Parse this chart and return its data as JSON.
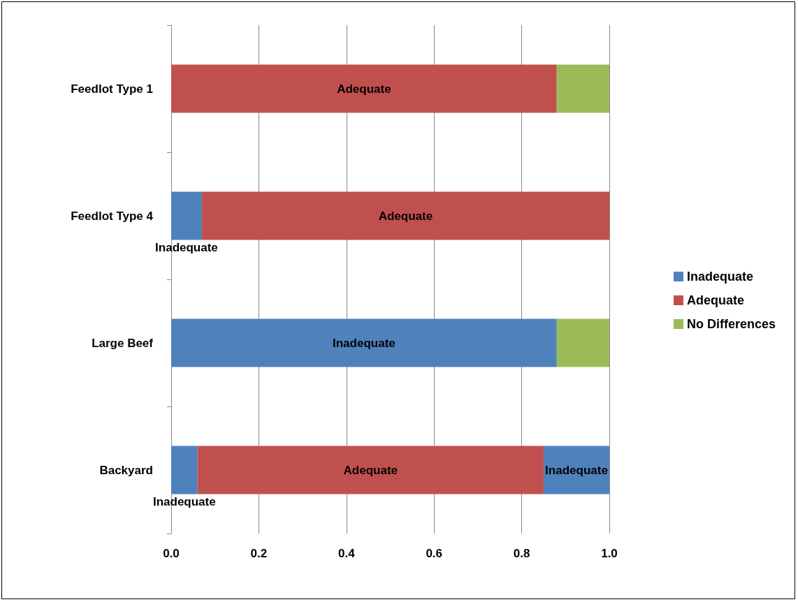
{
  "chart_data": {
    "type": "bar",
    "orientation": "horizontal",
    "stacked": true,
    "categories": [
      "Feedlot Type 1",
      "Feedlot Type 4",
      "Large Beef",
      "Backyard"
    ],
    "series": [
      {
        "name": "Inadequate",
        "color": "#4f81bd",
        "values": [
          null,
          0.07,
          0.88,
          0.06
        ],
        "value_labels": [
          null,
          "Inadequate",
          "Inadequate",
          "Inadequate"
        ]
      },
      {
        "name": "Adequate",
        "color": "#c0504d",
        "values": [
          0.88,
          0.93,
          null,
          0.79
        ],
        "value_labels": [
          "Adequate",
          "Adequate",
          null,
          "Adequate"
        ]
      },
      {
        "name": "No Differences",
        "color": "#9bbb59",
        "values": [
          0.12,
          null,
          0.12,
          null
        ],
        "value_labels": [
          null,
          null,
          null,
          null
        ]
      },
      {
        "color": "#4f81bd",
        "values": [
          null,
          null,
          null,
          0.15
        ],
        "value_labels": [
          null,
          null,
          null,
          "Inadequate"
        ]
      }
    ],
    "xlim": [
      0,
      1
    ],
    "xticks": [
      {
        "value": 0,
        "label": "0.0"
      },
      {
        "value": 0.2,
        "label": "0.2"
      },
      {
        "value": 0.4,
        "label": "0.4"
      },
      {
        "value": 0.6,
        "label": "0.6"
      },
      {
        "value": 0.8,
        "label": "0.8"
      },
      {
        "value": 1,
        "label": "1.0"
      }
    ],
    "grid": "x",
    "legend": "right"
  }
}
